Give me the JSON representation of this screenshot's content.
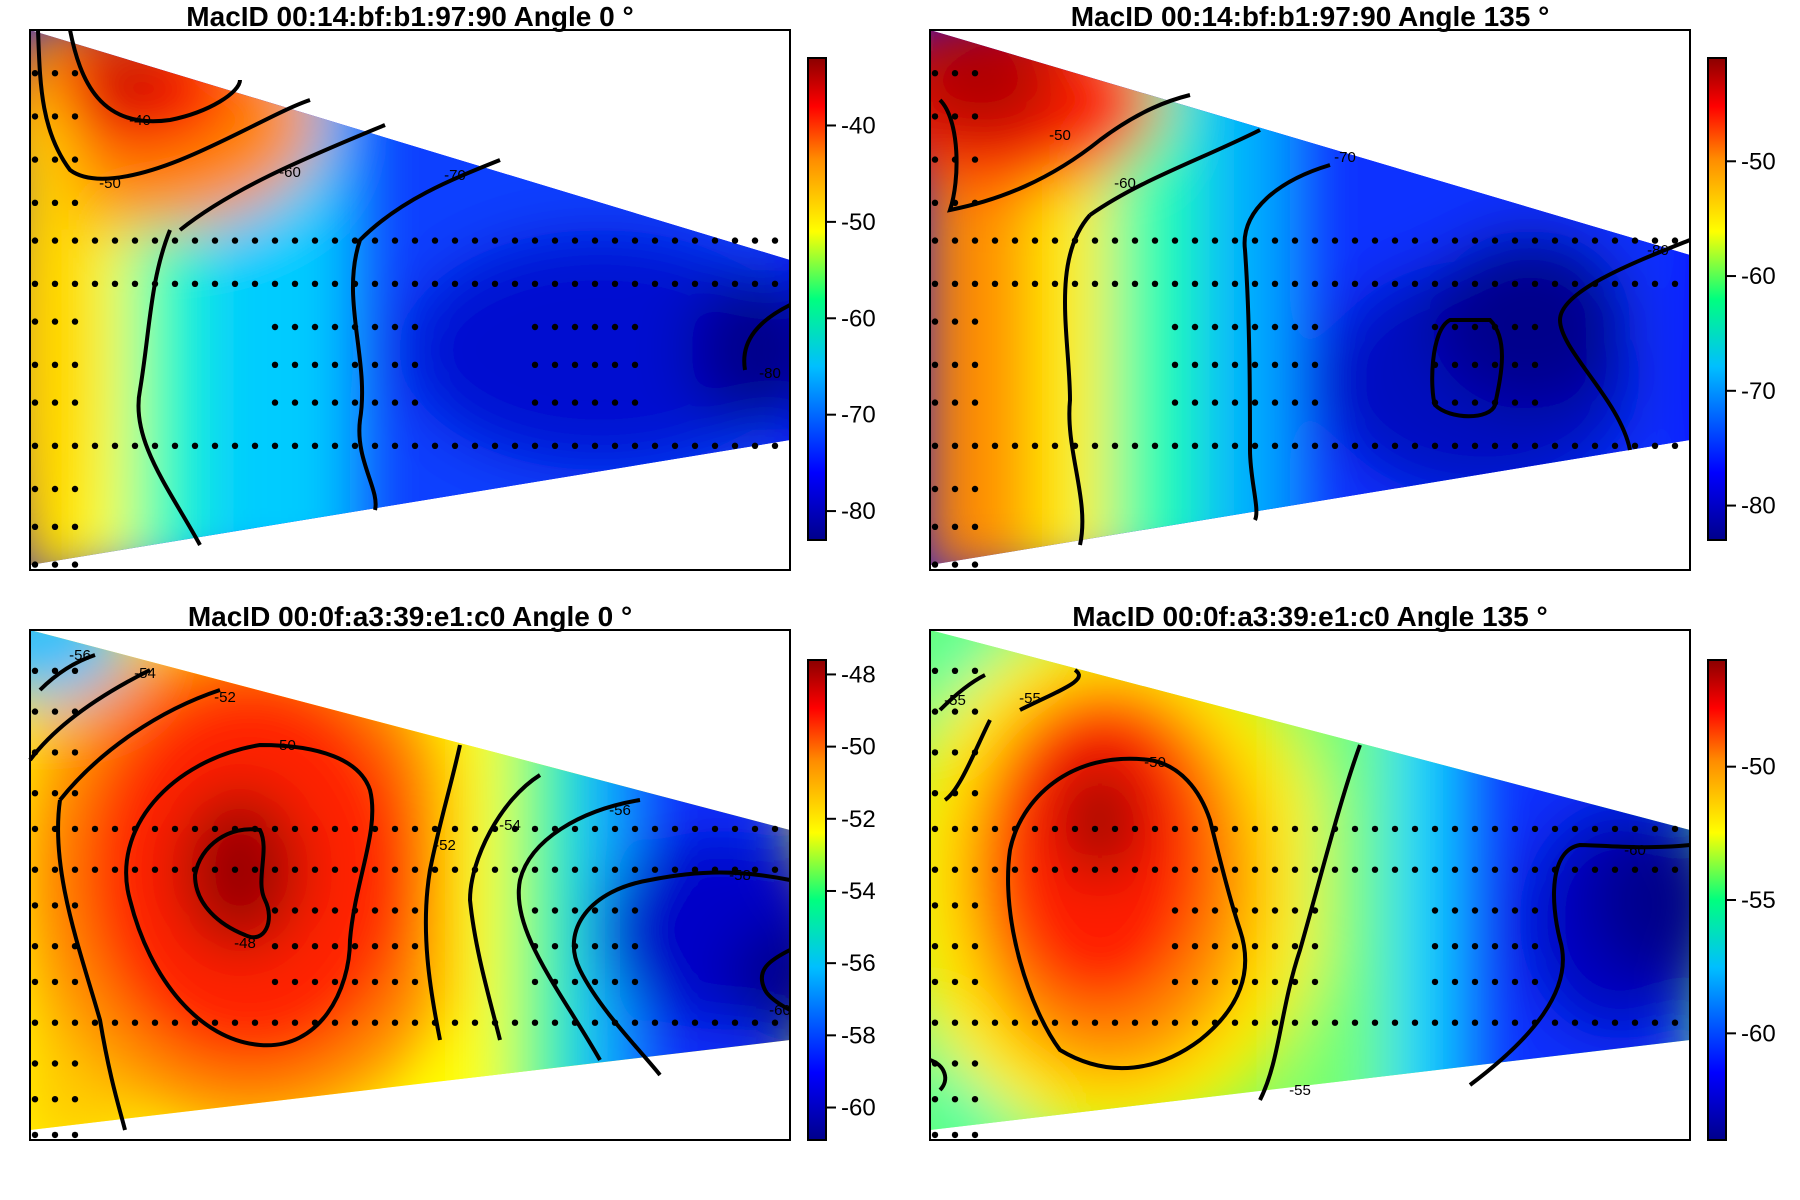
{
  "chart_data": [
    {
      "type": "heatmap",
      "title": "MacID  00:14:bf:b1:97:90  Angle  0 °",
      "xlabel": "",
      "ylabel": "",
      "colorbar": {
        "ticks": [
          -40,
          -50,
          -60,
          -70,
          -80
        ],
        "tick_labels": [
          "-40",
          "-50",
          "-60",
          "-70",
          "-80"
        ],
        "range": [
          -83,
          -33
        ]
      },
      "contour_levels": [
        {
          "value": -40,
          "label": "-40"
        },
        {
          "value": -50,
          "label": "-50"
        },
        {
          "value": -60,
          "label": "-60"
        },
        {
          "value": -70,
          "label": "-70"
        },
        {
          "value": -80,
          "label": "-80"
        }
      ],
      "color_scale": [
        "#00008b",
        "#0000ff",
        "#00bfff",
        "#00ff7f",
        "#ffff00",
        "#ff8c00",
        "#ff0000",
        "#8b0000"
      ],
      "grid": false
    },
    {
      "type": "heatmap",
      "title": "MacID  00:14:bf:b1:97:90  Angle  135 °",
      "xlabel": "",
      "ylabel": "",
      "colorbar": {
        "ticks": [
          -50,
          -60,
          -70,
          -80
        ],
        "tick_labels": [
          "-50",
          "-60",
          "-70",
          "-80"
        ],
        "range": [
          -83,
          -41
        ]
      },
      "contour_levels": [
        {
          "value": -50,
          "label": "-50"
        },
        {
          "value": -60,
          "label": "-60"
        },
        {
          "value": -70,
          "label": "-70"
        },
        {
          "value": -80,
          "label": "-80"
        }
      ],
      "color_scale": [
        "#00008b",
        "#0000ff",
        "#00bfff",
        "#00ff7f",
        "#ffff00",
        "#ff8c00",
        "#ff0000",
        "#8b0000"
      ],
      "grid": false
    },
    {
      "type": "heatmap",
      "title": "MacID  00:0f:a3:39:e1:c0  Angle  0 °",
      "xlabel": "",
      "ylabel": "",
      "colorbar": {
        "ticks": [
          -48,
          -50,
          -52,
          -54,
          -56,
          -58,
          -60
        ],
        "tick_labels": [
          "-48",
          "-50",
          "-52",
          "-54",
          "-56",
          "-58",
          "-60"
        ],
        "range": [
          -60.9,
          -47.6
        ]
      },
      "contour_levels": [
        {
          "value": -48,
          "label": "-48"
        },
        {
          "value": -50,
          "label": "-50"
        },
        {
          "value": -52,
          "label": "-52"
        },
        {
          "value": -54,
          "label": "-54"
        },
        {
          "value": -56,
          "label": "-56"
        },
        {
          "value": -58,
          "label": "-58"
        },
        {
          "value": -60,
          "label": "-60"
        }
      ],
      "color_scale": [
        "#00008b",
        "#0000ff",
        "#00bfff",
        "#00ff7f",
        "#ffff00",
        "#ff8c00",
        "#ff0000",
        "#8b0000"
      ],
      "grid": false
    },
    {
      "type": "heatmap",
      "title": "MacID  00:0f:a3:39:e1:c0  Angle  135 °",
      "xlabel": "",
      "ylabel": "",
      "colorbar": {
        "ticks": [
          -50,
          -55,
          -60
        ],
        "tick_labels": [
          "-50",
          "-55",
          "-60"
        ],
        "range": [
          -64,
          -46
        ]
      },
      "contour_levels": [
        {
          "value": -50,
          "label": "-50"
        },
        {
          "value": -55,
          "label": "-55"
        },
        {
          "value": -60,
          "label": "-60"
        }
      ],
      "color_scale": [
        "#00008b",
        "#0000ff",
        "#00bfff",
        "#00ff7f",
        "#ffff00",
        "#ff8c00",
        "#ff0000",
        "#8b0000"
      ],
      "grid": false
    }
  ]
}
